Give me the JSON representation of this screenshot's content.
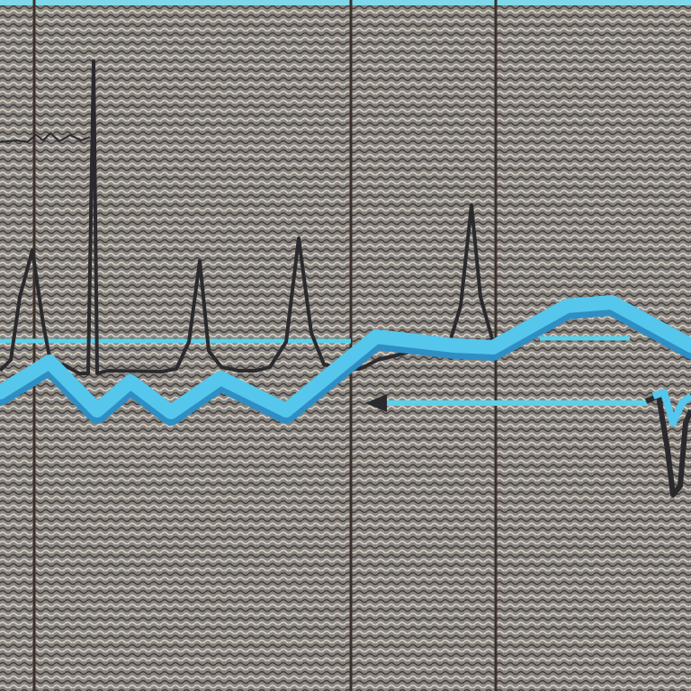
{
  "colors": {
    "background": "#8a8580",
    "texture_light": "#d9d2c4",
    "texture_dark": "#3f3b3a",
    "texture_accent": "#6d7a8c",
    "divider": "#3b2f2a",
    "baseline": "#5ad1ea",
    "trace_primary": "#55c7ec",
    "trace_primary_dark": "#2f8fc4",
    "spike_trace": "#2a2a2e",
    "top_band": "#7fd8ea"
  }
}
